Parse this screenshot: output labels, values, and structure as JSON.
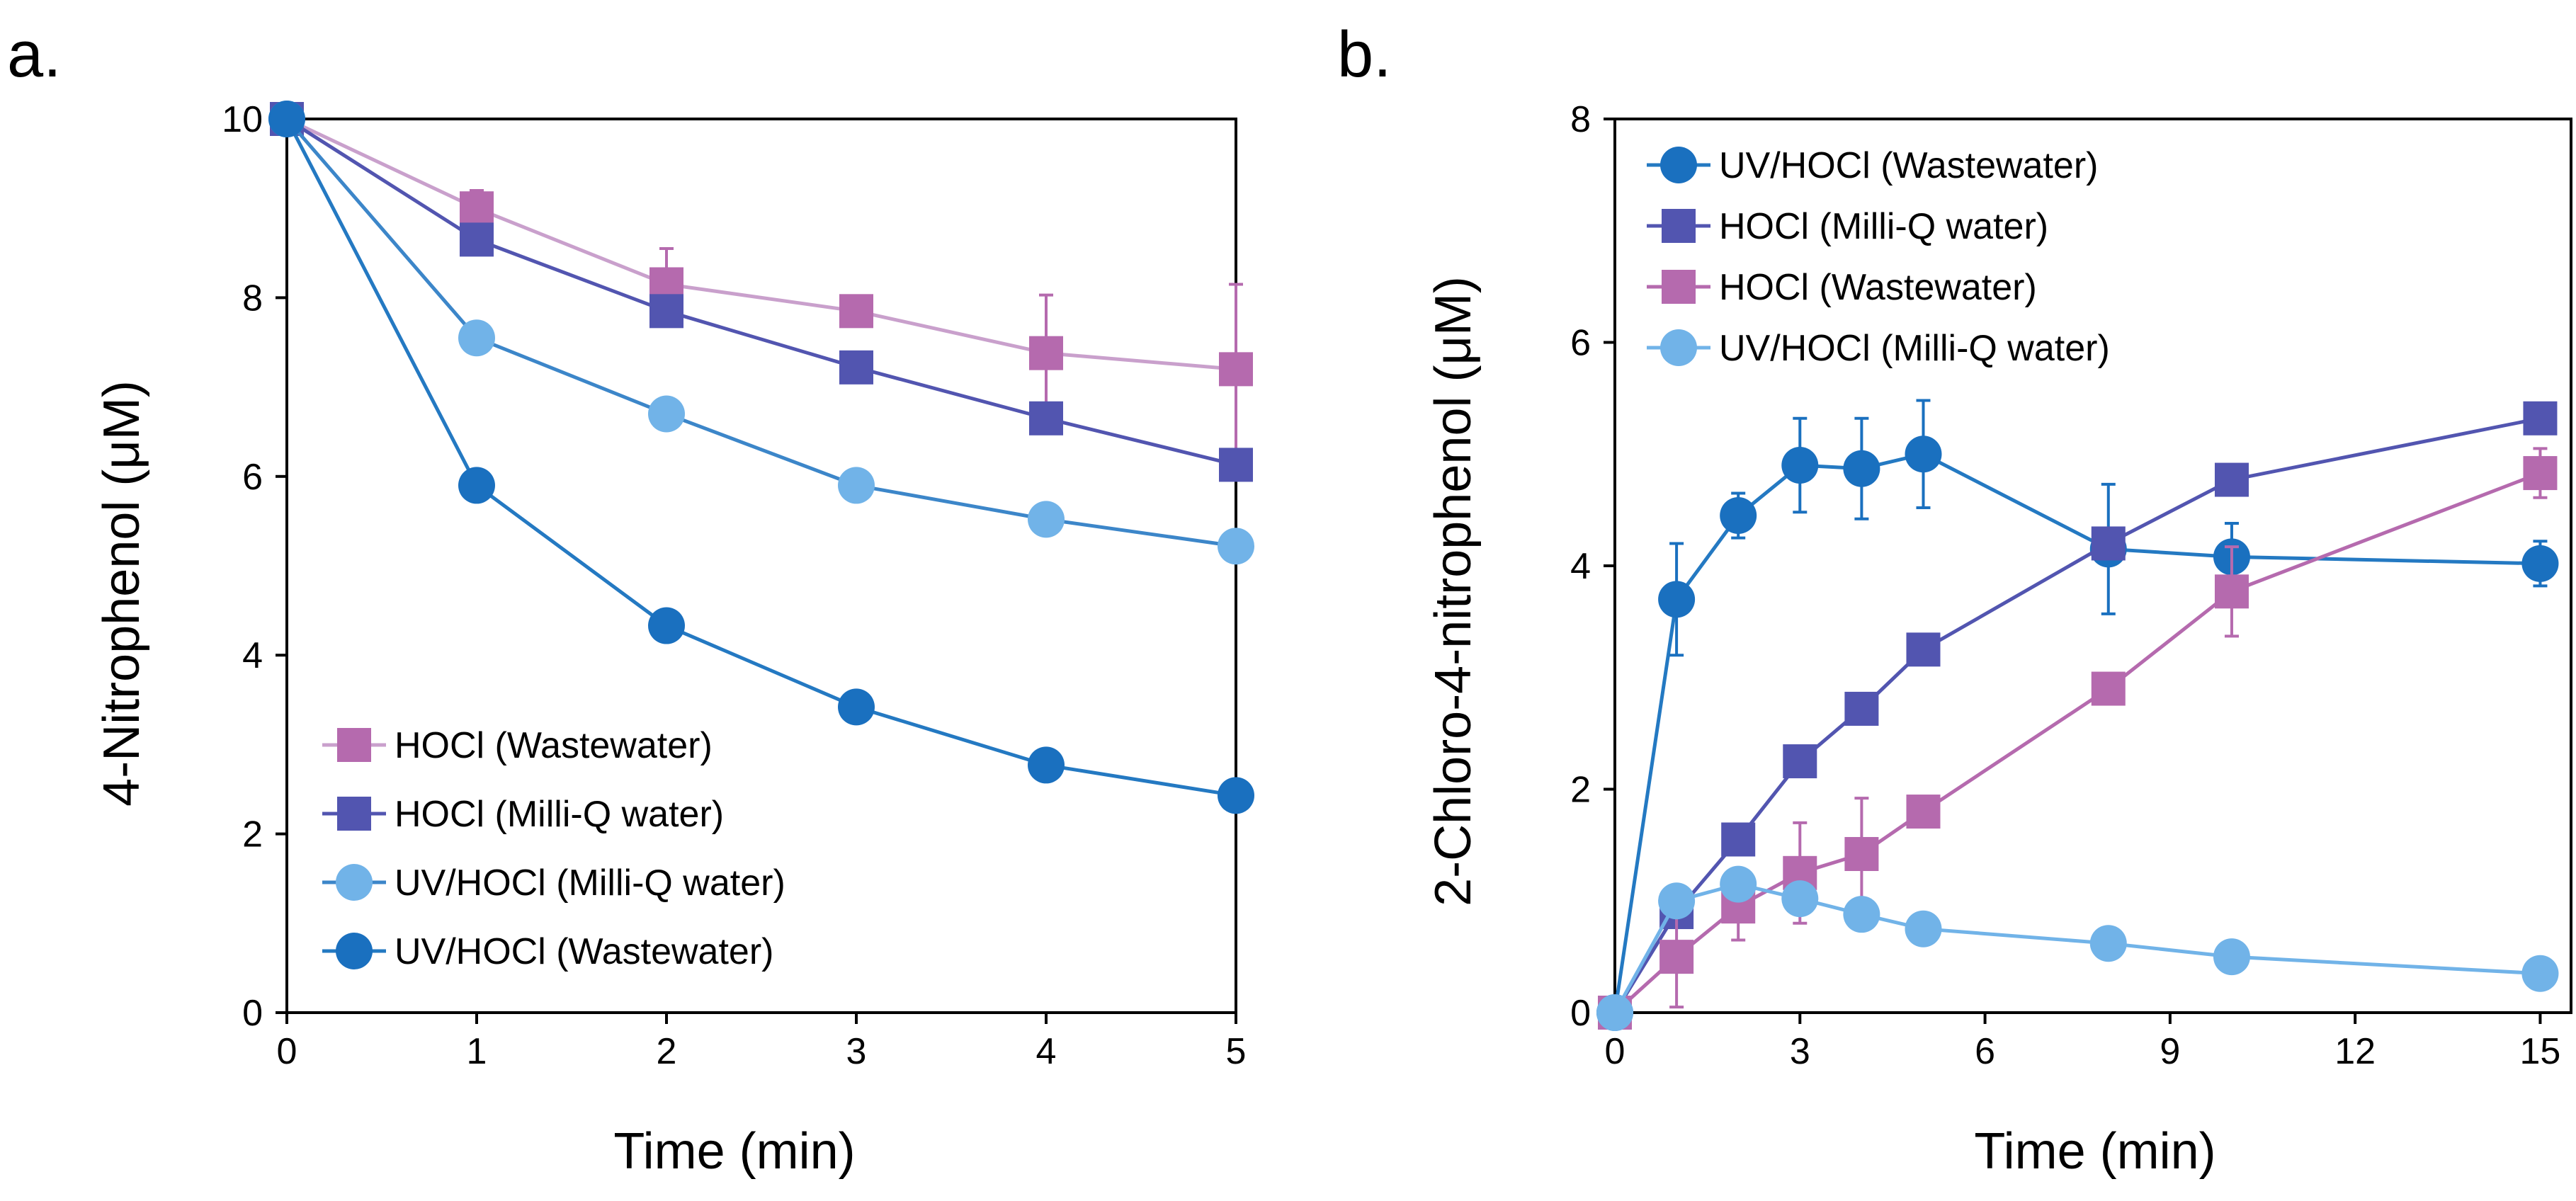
{
  "chart_data": [
    {
      "panel": "a.",
      "type": "line",
      "xlabel": "Time (min)",
      "ylabel": "4-Nitrophenol (μM)",
      "xlim": [
        0,
        5
      ],
      "ylim": [
        0,
        10
      ],
      "xticks": [
        0,
        1,
        2,
        3,
        4,
        5
      ],
      "yticks": [
        0,
        2,
        4,
        6,
        8,
        10
      ],
      "grid": false,
      "legend_position": "bottom-left",
      "series": [
        {
          "name": "HOCl (Wastewater)",
          "color": "#B56AAE",
          "line_color": "#C9A0CC",
          "marker": "square",
          "x": [
            0,
            1,
            2,
            3,
            4,
            5
          ],
          "y": [
            10,
            9.0,
            8.15,
            7.85,
            7.38,
            7.2
          ],
          "err": [
            0,
            0.2,
            0.4,
            0.15,
            0.65,
            0.95
          ]
        },
        {
          "name": "HOCl (Milli-Q water)",
          "color": "#5255B0",
          "line_color": "#5255B0",
          "marker": "square",
          "x": [
            0,
            1,
            2,
            3,
            4,
            5
          ],
          "y": [
            10,
            8.65,
            7.85,
            7.22,
            6.65,
            6.13
          ],
          "err": [
            0,
            0,
            0,
            0,
            0,
            0
          ]
        },
        {
          "name": "UV/HOCl (Milli-Q water)",
          "color": "#71B3E8",
          "line_color": "#3C86C9",
          "marker": "circle",
          "x": [
            0,
            1,
            2,
            3,
            4,
            5
          ],
          "y": [
            10,
            7.55,
            6.7,
            5.9,
            5.52,
            5.22
          ],
          "err": [
            0,
            0,
            0,
            0,
            0,
            0
          ]
        },
        {
          "name": "UV/HOCl (Wastewater)",
          "color": "#1A70BF",
          "line_color": "#2479C2",
          "marker": "circle",
          "x": [
            0,
            1,
            2,
            3,
            4,
            5
          ],
          "y": [
            10,
            5.9,
            4.33,
            3.42,
            2.77,
            2.43
          ],
          "err": [
            0,
            0,
            0,
            0,
            0,
            0
          ]
        }
      ]
    },
    {
      "panel": "b.",
      "type": "line",
      "xlabel": "Time (min)",
      "ylabel": "2-Chloro-4-nitrophenol (μM)",
      "xlim": [
        0,
        15.5
      ],
      "ylim": [
        0,
        8
      ],
      "xticks": [
        0,
        3,
        6,
        9,
        12,
        15
      ],
      "yticks": [
        0,
        2,
        4,
        6,
        8
      ],
      "grid": false,
      "legend_position": "top-left",
      "series": [
        {
          "name": "UV/HOCl (Wastewater)",
          "color": "#1A70BF",
          "line_color": "#2479C2",
          "marker": "circle",
          "x": [
            0,
            1,
            2,
            3,
            4,
            5,
            8,
            10,
            15
          ],
          "y": [
            0,
            3.7,
            4.45,
            4.9,
            4.87,
            5.0,
            4.15,
            4.08,
            4.02
          ],
          "err": [
            0,
            0.5,
            0.2,
            0.42,
            0.45,
            0.48,
            0.58,
            0.3,
            0.2
          ]
        },
        {
          "name": "HOCl (Milli-Q water)",
          "color": "#5255B0",
          "line_color": "#5255B0",
          "marker": "square",
          "x": [
            0,
            1,
            2,
            3,
            4,
            5,
            8,
            10,
            15
          ],
          "y": [
            0,
            0.9,
            1.55,
            2.25,
            2.72,
            3.25,
            4.2,
            4.77,
            5.32
          ],
          "err": [
            0,
            0,
            0,
            0,
            0,
            0,
            0,
            0,
            0
          ]
        },
        {
          "name": "HOCl (Wastewater)",
          "color": "#B56AAE",
          "line_color": "#B56AAE",
          "marker": "square",
          "x": [
            0,
            1,
            2,
            3,
            4,
            5,
            8,
            10,
            15
          ],
          "y": [
            0,
            0.5,
            0.95,
            1.25,
            1.42,
            1.8,
            2.9,
            3.77,
            4.83
          ],
          "err": [
            0,
            0.45,
            0.3,
            0.45,
            0.5,
            0,
            0,
            0.4,
            0.22
          ]
        },
        {
          "name": "UV/HOCl (Milli-Q water)",
          "color": "#71B3E8",
          "line_color": "#71B3E8",
          "marker": "circle",
          "x": [
            0,
            1,
            2,
            3,
            4,
            5,
            8,
            10,
            15
          ],
          "y": [
            0,
            1.0,
            1.15,
            1.02,
            0.88,
            0.75,
            0.62,
            0.5,
            0.35
          ],
          "err": [
            0,
            0,
            0,
            0,
            0,
            0,
            0,
            0,
            0
          ]
        }
      ]
    }
  ]
}
